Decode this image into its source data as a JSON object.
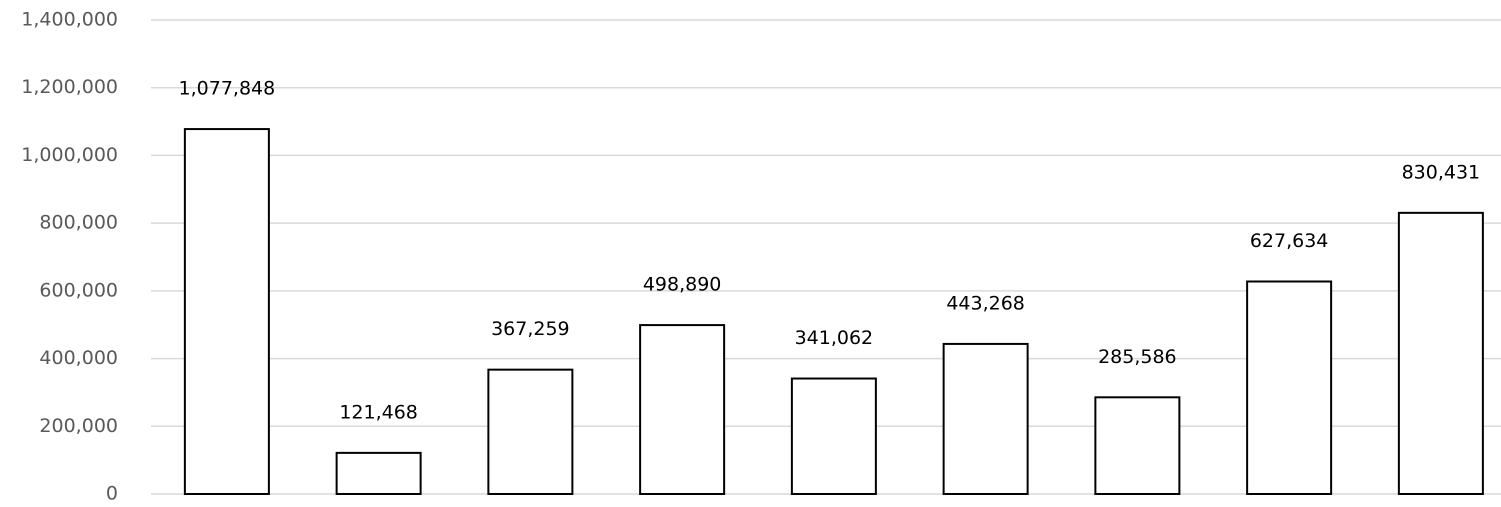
{
  "chart_data": {
    "type": "bar",
    "categories": [
      null,
      null,
      null,
      null,
      null,
      null,
      null,
      null,
      null
    ],
    "values": [
      1077848,
      121468,
      367259,
      498890,
      341062,
      443268,
      285586,
      627634,
      830431
    ],
    "value_labels": [
      "1,077,848",
      "121,468",
      "367,259",
      "498,890",
      "341,062",
      "443,268",
      "285,586",
      "627,634",
      "830,431"
    ],
    "color": "#ffffff",
    "ylim": [
      0,
      1400000
    ],
    "yticks": [
      0,
      {
        "value": 200000,
        "label": "200,000"
      },
      {
        "value": 400000,
        "label": "400,000"
      },
      {
        "value": 600000,
        "label": "600,000"
      },
      {
        "value": 800000,
        "label": "800,000"
      },
      {
        "value": 1000000,
        "label": "1,000,000"
      },
      {
        "value": 1200000,
        "label": "1,200,000"
      },
      {
        "value": 1400000,
        "label": "1,400,000"
      }
    ],
    "grid": true
  }
}
